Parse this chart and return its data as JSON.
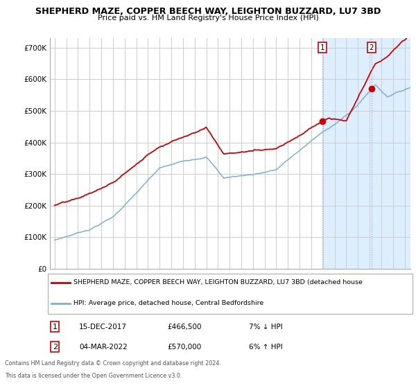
{
  "title1": "SHEPHERD MAZE, COPPER BEECH WAY, LEIGHTON BUZZARD, LU7 3BD",
  "title2": "Price paid vs. HM Land Registry's House Price Index (HPI)",
  "legend_line1": "SHEPHERD MAZE, COPPER BEECH WAY, LEIGHTON BUZZARD, LU7 3BD (detached house",
  "legend_line2": "HPI: Average price, detached house, Central Bedfordshire",
  "ann1_date": "15-DEC-2017",
  "ann1_price": "£466,500",
  "ann1_pct": "7% ↓ HPI",
  "ann1_x": 2017.96,
  "ann1_y": 466500,
  "ann2_date": "04-MAR-2022",
  "ann2_price": "£570,000",
  "ann2_pct": "6% ↑ HPI",
  "ann2_x": 2022.17,
  "ann2_y": 570000,
  "vline1_x": 2017.96,
  "vline2_x": 2022.17,
  "shade_start": 2017.96,
  "ylim": [
    0,
    730000
  ],
  "yticks": [
    0,
    100000,
    200000,
    300000,
    400000,
    500000,
    600000,
    700000
  ],
  "ytick_labels": [
    "£0",
    "£100K",
    "£200K",
    "£300K",
    "£400K",
    "£500K",
    "£600K",
    "£700K"
  ],
  "xlim_start": 1994.6,
  "xlim_end": 2025.5,
  "footer1": "Contains HM Land Registry data © Crown copyright and database right 2024.",
  "footer2": "This data is licensed under the Open Government Licence v3.0.",
  "red_color": "#cc0000",
  "blue_color": "#7ab0d4",
  "shade_color": "#ddeeff",
  "bg_color": "#ffffff",
  "grid_color": "#cccccc"
}
